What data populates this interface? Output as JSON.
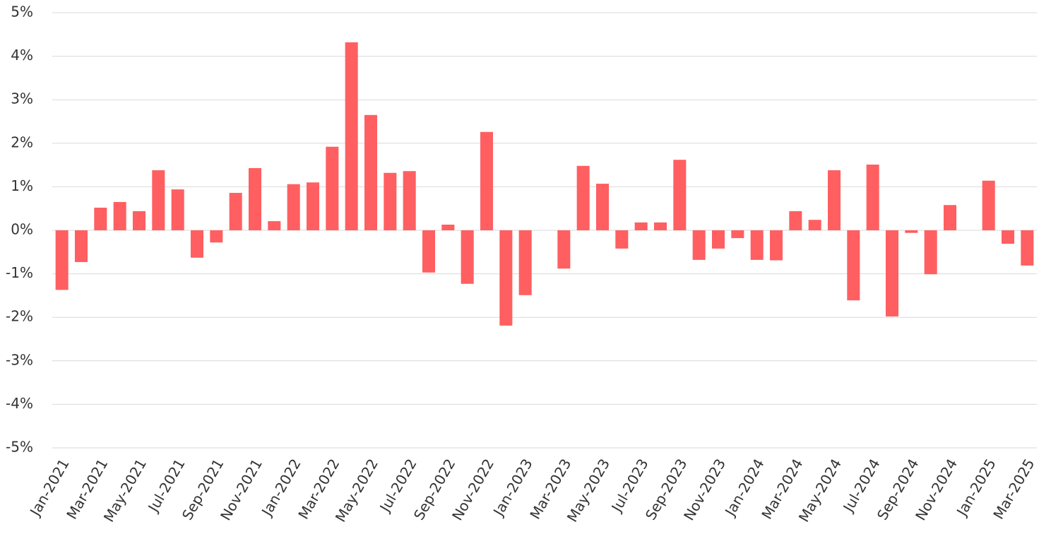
{
  "chart_data": {
    "type": "bar",
    "color": "#ff5f61",
    "grid": true,
    "categories": [
      "Jan-2021",
      null,
      "Mar-2021",
      null,
      "May-2021",
      null,
      "Jul-2021",
      null,
      "Sep-2021",
      null,
      "Nov-2021",
      null,
      "Jan-2022",
      null,
      "Mar-2022",
      null,
      "May-2022",
      null,
      "Jul-2022",
      null,
      "Sep-2022",
      null,
      "Nov-2022",
      null,
      "Jan-2023",
      null,
      "Mar-2023",
      null,
      "May-2023",
      null,
      "Jul-2023",
      null,
      "Sep-2023",
      null,
      "Nov-2023",
      null,
      "Jan-2024",
      null,
      "Mar-2024",
      null,
      "May-2024",
      null,
      "Jul-2024",
      null,
      "Sep-2024",
      null,
      "Nov-2024",
      null,
      "Jan-2025",
      null,
      "Mar-2025"
    ],
    "values": [
      -1.37,
      -0.73,
      0.52,
      0.65,
      0.44,
      1.38,
      0.94,
      -0.63,
      -0.28,
      0.86,
      1.43,
      0.21,
      1.06,
      1.1,
      1.92,
      4.32,
      2.65,
      1.32,
      1.36,
      -0.97,
      0.13,
      -1.23,
      2.26,
      -2.19,
      -1.49,
      0,
      -0.88,
      1.48,
      1.07,
      -0.42,
      0.18,
      0.18,
      1.62,
      -0.68,
      -0.42,
      -0.18,
      -0.68,
      -0.69,
      0.44,
      0.24,
      1.38,
      -1.61,
      1.51,
      -1.98,
      -0.06,
      -1.01,
      0.58,
      0,
      1.14,
      -0.31,
      -0.81
    ],
    "ylim": [
      -5,
      5
    ],
    "yticks": [
      {
        "value": -5,
        "label": "-5%"
      },
      {
        "value": -4,
        "label": "-4%"
      },
      {
        "value": -3,
        "label": "-3%"
      },
      {
        "value": -2,
        "label": "-2%"
      },
      {
        "value": -1,
        "label": "-1%"
      },
      {
        "value": 0,
        "label": "0%"
      },
      {
        "value": 1,
        "label": "1%"
      },
      {
        "value": 2,
        "label": "2%"
      },
      {
        "value": 3,
        "label": "3%"
      },
      {
        "value": 4,
        "label": "4%"
      },
      {
        "value": 5,
        "label": "5%"
      }
    ]
  }
}
